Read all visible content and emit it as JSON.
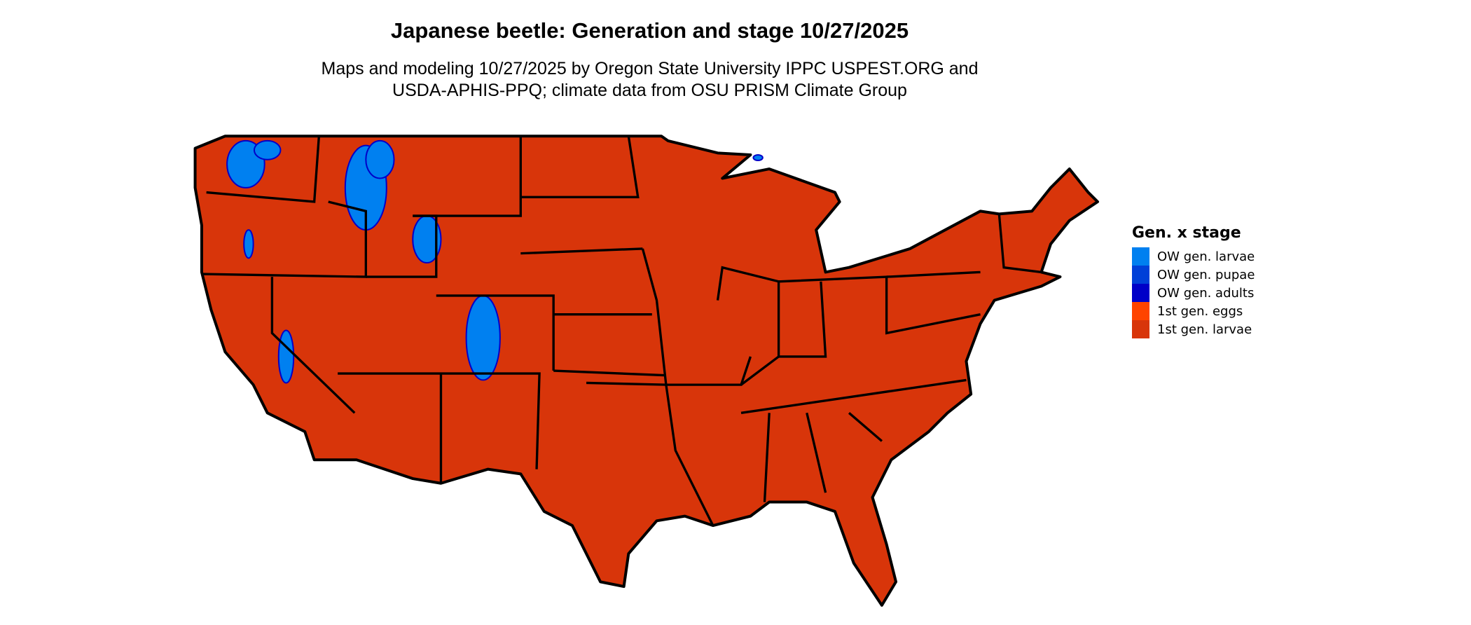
{
  "title": "Japanese beetle: Generation and stage 10/27/2025",
  "subtitle_line1": "Maps and modeling 10/27/2025 by Oregon State University IPPC USPEST.ORG and",
  "subtitle_line2": "USDA-APHIS-PPQ; climate data from OSU PRISM Climate Group",
  "legend": {
    "title": "Gen. x stage",
    "items": [
      {
        "label": "OW gen. larvae",
        "color": "#0080F0"
      },
      {
        "label": "OW gen. pupae",
        "color": "#0040D8"
      },
      {
        "label": "OW gen. adults",
        "color": "#0000C8"
      },
      {
        "label": "1st gen. eggs",
        "color": "#FF4400"
      },
      {
        "label": "1st gen. larvae",
        "color": "#D8350A"
      }
    ]
  },
  "map": {
    "region": "Contiguous United States",
    "dominant_class": "1st gen. larvae",
    "border_color": "#000000"
  }
}
